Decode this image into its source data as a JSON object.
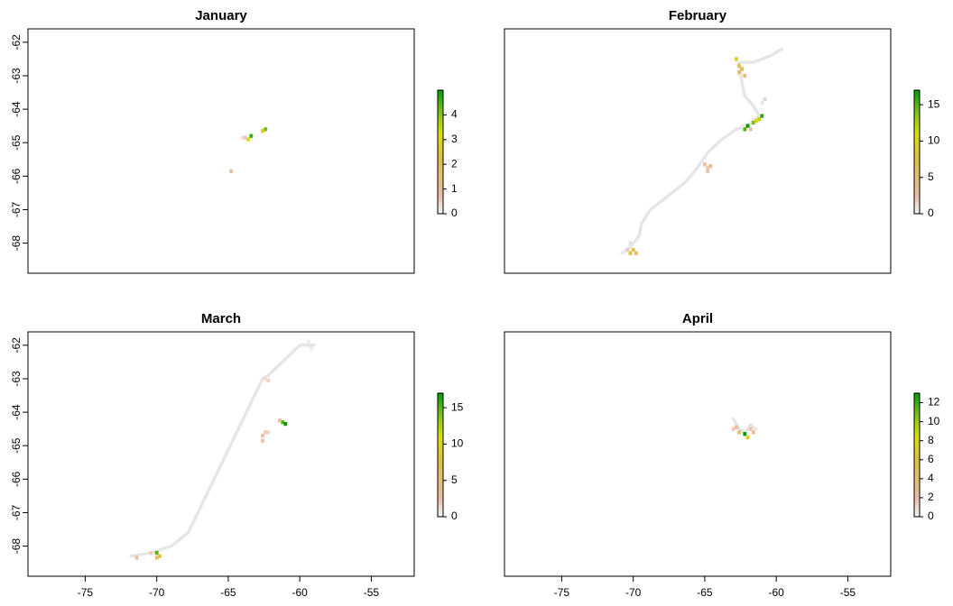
{
  "chart_data": [
    {
      "type": "heatmap",
      "title": "January",
      "xlabel": "",
      "ylabel": "",
      "xlim": [
        -79,
        -52
      ],
      "ylim": [
        -68.9,
        -61.6
      ],
      "show_x_ticks": false,
      "show_y_ticks": true,
      "x_ticks": [
        -75,
        -70,
        -65,
        -60,
        -55
      ],
      "y_ticks": [
        -62,
        -63,
        -64,
        -65,
        -66,
        -67,
        -68
      ],
      "y_tick_labels": [
        "-62",
        "-63",
        "-64",
        "-65",
        "-66",
        "-67",
        "-68"
      ],
      "legend": {
        "max": 5,
        "ticks": [
          0,
          1,
          2,
          3,
          4
        ],
        "tick_labels": [
          "0",
          "1",
          "2",
          "3",
          "4"
        ],
        "placement": "right"
      },
      "cells": [
        {
          "lon": -64.0,
          "lat": -64.85,
          "v": 0.3
        },
        {
          "lon": -63.8,
          "lat": -64.85,
          "v": 0.6
        },
        {
          "lon": -63.6,
          "lat": -64.9,
          "v": 3.2
        },
        {
          "lon": -63.4,
          "lat": -64.8,
          "v": 4.6
        },
        {
          "lon": -62.6,
          "lat": -64.65,
          "v": 2.6
        },
        {
          "lon": -62.4,
          "lat": -64.6,
          "v": 4.2
        },
        {
          "lon": -64.8,
          "lat": -65.85,
          "v": 0.8
        }
      ]
    },
    {
      "type": "heatmap",
      "title": "February",
      "xlabel": "",
      "ylabel": "",
      "xlim": [
        -79,
        -52
      ],
      "ylim": [
        -68.9,
        -61.6
      ],
      "show_x_ticks": false,
      "show_y_ticks": false,
      "x_ticks": [
        -75,
        -70,
        -65,
        -60,
        -55
      ],
      "y_ticks": [
        -62,
        -63,
        -64,
        -65,
        -66,
        -67,
        -68
      ],
      "legend": {
        "max": 17,
        "ticks": [
          0,
          5,
          10,
          15
        ],
        "tick_labels": [
          "0",
          "5",
          "10",
          "15"
        ],
        "placement": "right"
      },
      "cells": [
        {
          "lon": -62.6,
          "lat": -62.7,
          "v": 7
        },
        {
          "lon": -62.4,
          "lat": -62.8,
          "v": 8
        },
        {
          "lon": -62.6,
          "lat": -62.9,
          "v": 6
        },
        {
          "lon": -62.2,
          "lat": -63.0,
          "v": 5
        },
        {
          "lon": -62.8,
          "lat": -62.5,
          "v": 9
        },
        {
          "lon": -60.8,
          "lat": -63.7,
          "v": 1.5
        },
        {
          "lon": -61.0,
          "lat": -63.8,
          "v": 0.8
        },
        {
          "lon": -61.2,
          "lat": -64.3,
          "v": 12
        },
        {
          "lon": -61.0,
          "lat": -64.2,
          "v": 16
        },
        {
          "lon": -61.4,
          "lat": -64.35,
          "v": 10
        },
        {
          "lon": -61.6,
          "lat": -64.4,
          "v": 14
        },
        {
          "lon": -62.0,
          "lat": -64.5,
          "v": 17
        },
        {
          "lon": -62.2,
          "lat": -64.6,
          "v": 15
        },
        {
          "lon": -61.8,
          "lat": -64.6,
          "v": 3
        },
        {
          "lon": -62.4,
          "lat": -64.5,
          "v": 0.4
        },
        {
          "lon": -65.0,
          "lat": -65.65,
          "v": 3
        },
        {
          "lon": -64.8,
          "lat": -65.75,
          "v": 2
        },
        {
          "lon": -64.6,
          "lat": -65.7,
          "v": 4
        },
        {
          "lon": -64.8,
          "lat": -65.85,
          "v": 2.5
        },
        {
          "lon": -70.0,
          "lat": -68.2,
          "v": 7
        },
        {
          "lon": -70.2,
          "lat": -68.3,
          "v": 8
        },
        {
          "lon": -69.8,
          "lat": -68.3,
          "v": 6
        },
        {
          "lon": -70.4,
          "lat": -68.2,
          "v": 2
        },
        {
          "lon": -70.2,
          "lat": -68.0,
          "v": 1
        }
      ],
      "track": [
        [
          -59.6,
          -62.2
        ],
        [
          -60.4,
          -62.4
        ],
        [
          -61.6,
          -62.6
        ],
        [
          -62.6,
          -62.6
        ],
        [
          -62.4,
          -63.2
        ],
        [
          -62.2,
          -63.6
        ],
        [
          -61.6,
          -63.9
        ],
        [
          -61.2,
          -64.2
        ],
        [
          -62.0,
          -64.5
        ],
        [
          -62.8,
          -64.6
        ],
        [
          -63.8,
          -64.9
        ],
        [
          -64.8,
          -65.3
        ],
        [
          -65.6,
          -65.8
        ],
        [
          -66.4,
          -66.2
        ],
        [
          -67.6,
          -66.6
        ],
        [
          -68.8,
          -67.0
        ],
        [
          -69.4,
          -67.4
        ],
        [
          -69.6,
          -67.8
        ],
        [
          -70.4,
          -68.2
        ],
        [
          -70.8,
          -68.3
        ]
      ]
    },
    {
      "type": "heatmap",
      "title": "March",
      "xlabel": "",
      "ylabel": "",
      "xlim": [
        -79,
        -52
      ],
      "ylim": [
        -68.9,
        -61.6
      ],
      "show_x_ticks": true,
      "show_y_ticks": true,
      "x_ticks": [
        -75,
        -70,
        -65,
        -60,
        -55
      ],
      "x_tick_labels": [
        "-75",
        "-70",
        "-65",
        "-60",
        "-55"
      ],
      "y_ticks": [
        -62,
        -63,
        -64,
        -65,
        -66,
        -67,
        -68
      ],
      "y_tick_labels": [
        "-62",
        "-63",
        "-64",
        "-65",
        "-66",
        "-67",
        "-68"
      ],
      "legend": {
        "max": 17,
        "ticks": [
          0,
          5,
          10,
          15
        ],
        "tick_labels": [
          "0",
          "5",
          "10",
          "15"
        ],
        "placement": "right"
      },
      "cells": [
        {
          "lon": -59.4,
          "lat": -61.9,
          "v": 0.3
        },
        {
          "lon": -59.2,
          "lat": -62.1,
          "v": 0.5
        },
        {
          "lon": -62.4,
          "lat": -63.0,
          "v": 1.0
        },
        {
          "lon": -62.2,
          "lat": -63.05,
          "v": 1.5
        },
        {
          "lon": -61.2,
          "lat": -64.3,
          "v": 15
        },
        {
          "lon": -61.0,
          "lat": -64.35,
          "v": 17
        },
        {
          "lon": -61.4,
          "lat": -64.25,
          "v": 3
        },
        {
          "lon": -62.4,
          "lat": -64.6,
          "v": 2
        },
        {
          "lon": -62.6,
          "lat": -64.7,
          "v": 3
        },
        {
          "lon": -62.2,
          "lat": -64.6,
          "v": 1.5
        },
        {
          "lon": -62.6,
          "lat": -64.85,
          "v": 2.5
        },
        {
          "lon": -70.0,
          "lat": -68.2,
          "v": 15
        },
        {
          "lon": -69.8,
          "lat": -68.3,
          "v": 8
        },
        {
          "lon": -70.0,
          "lat": -68.35,
          "v": 6
        },
        {
          "lon": -70.4,
          "lat": -68.2,
          "v": 2
        },
        {
          "lon": -71.4,
          "lat": -68.35,
          "v": 2.5
        }
      ],
      "track": [
        [
          -59.0,
          -62.0
        ],
        [
          -60.0,
          -62.0
        ],
        [
          -62.2,
          -62.9
        ],
        [
          -62.6,
          -63.0
        ],
        [
          -67.8,
          -67.6
        ],
        [
          -68.4,
          -67.8
        ],
        [
          -69.0,
          -68.0
        ],
        [
          -70.4,
          -68.2
        ],
        [
          -71.8,
          -68.3
        ]
      ]
    },
    {
      "type": "heatmap",
      "title": "April",
      "xlabel": "",
      "ylabel": "",
      "xlim": [
        -79,
        -52
      ],
      "ylim": [
        -68.9,
        -61.6
      ],
      "show_x_ticks": true,
      "show_y_ticks": false,
      "x_ticks": [
        -75,
        -70,
        -65,
        -60,
        -55
      ],
      "x_tick_labels": [
        "-75",
        "-70",
        "-65",
        "-60",
        "-55"
      ],
      "y_ticks": [
        -62,
        -63,
        -64,
        -65,
        -66,
        -67,
        -68
      ],
      "legend": {
        "max": 13,
        "ticks": [
          0,
          2,
          4,
          6,
          8,
          10,
          12
        ],
        "tick_labels": [
          "0",
          "2",
          "4",
          "6",
          "8",
          "10",
          "12"
        ],
        "placement": "right"
      },
      "cells": [
        {
          "lon": -62.8,
          "lat": -64.45,
          "v": 3
        },
        {
          "lon": -62.6,
          "lat": -64.6,
          "v": 4
        },
        {
          "lon": -62.2,
          "lat": -64.65,
          "v": 13
        },
        {
          "lon": -62.0,
          "lat": -64.75,
          "v": 7
        },
        {
          "lon": -61.8,
          "lat": -64.5,
          "v": 2
        },
        {
          "lon": -61.6,
          "lat": -64.6,
          "v": 3
        },
        {
          "lon": -61.8,
          "lat": -64.4,
          "v": 1
        },
        {
          "lon": -63.0,
          "lat": -64.5,
          "v": 1.5
        }
      ],
      "track": [
        [
          -63.0,
          -64.2
        ],
        [
          -62.6,
          -64.5
        ],
        [
          -62.2,
          -64.6
        ],
        [
          -61.8,
          -64.4
        ],
        [
          -61.4,
          -64.5
        ]
      ]
    }
  ]
}
